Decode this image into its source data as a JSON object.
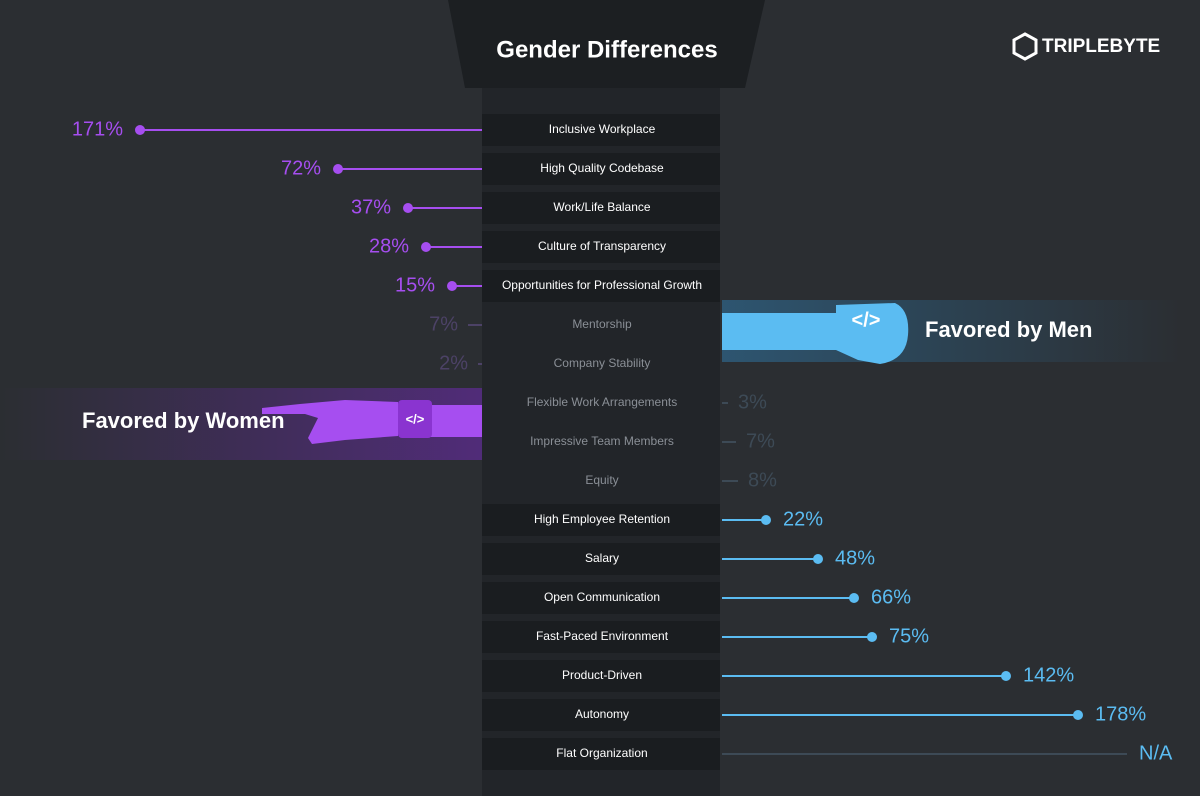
{
  "chart_data": {
    "type": "diverging-lollipop",
    "title": "Gender Differences",
    "brand": "TRIPLEBYTE",
    "categories": [
      "Inclusive Workplace",
      "High Quality Codebase",
      "Work/Life Balance",
      "Culture of Transparency",
      "Opportunities for Professional Growth",
      "Mentorship",
      "Company Stability",
      "Flexible Work Arrangements",
      "Impressive Team Members",
      "Equity",
      "High Employee Retention",
      "Salary",
      "Open Communication",
      "Fast-Paced Environment",
      "Product-Driven",
      "Autonomy",
      "Flat Organization"
    ],
    "muted": [
      false,
      false,
      false,
      false,
      false,
      true,
      true,
      true,
      true,
      true,
      false,
      false,
      false,
      false,
      false,
      false,
      false
    ],
    "series": [
      {
        "name": "Favored by Women",
        "color": "#a64ef0",
        "muted_color": "#4c4266",
        "side": "left",
        "values": [
          171,
          72,
          37,
          28,
          15,
          7,
          2,
          null,
          null,
          null,
          null,
          null,
          null,
          null,
          null,
          null,
          null
        ],
        "value_labels": [
          "171%",
          "72%",
          "37%",
          "28%",
          "15%",
          "7%",
          "2%",
          null,
          null,
          null,
          null,
          null,
          null,
          null,
          null,
          null,
          null
        ]
      },
      {
        "name": "Favored by Men",
        "color": "#5bbcf2",
        "muted_color": "#3d4a56",
        "side": "right",
        "values": [
          null,
          null,
          null,
          null,
          null,
          null,
          null,
          3,
          7,
          8,
          22,
          48,
          66,
          75,
          142,
          178,
          null
        ],
        "value_labels": [
          null,
          null,
          null,
          null,
          null,
          null,
          null,
          "3%",
          "7%",
          "8%",
          "22%",
          "48%",
          "66%",
          "75%",
          "142%",
          "178%",
          "N/A"
        ]
      }
    ]
  }
}
